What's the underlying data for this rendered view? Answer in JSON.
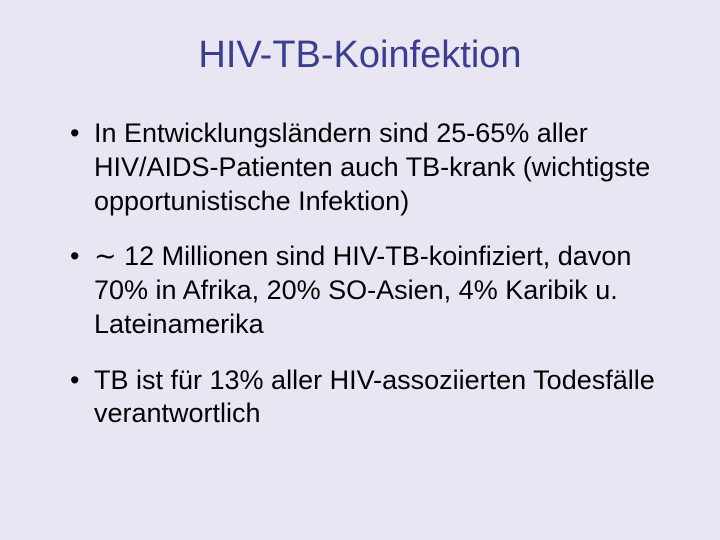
{
  "colors": {
    "background": "#e9e5f3",
    "title": "#3a3e8f",
    "body_text": "#000000"
  },
  "typography": {
    "title_fontsize": 38,
    "body_fontsize": 27,
    "font_family": "Arial"
  },
  "slide": {
    "title": "HIV-TB-Koinfektion",
    "bullets": [
      "In Entwicklungsländern sind 25-65% aller HIV/AIDS-Patienten auch TB-krank (wichtigste opportunistische Infektion)",
      "∼ 12 Millionen sind HIV-TB-koinfiziert, davon 70% in Afrika, 20% SO-Asien, 4% Karibik u. Lateinamerika",
      "TB ist für 13% aller HIV-assoziierten Todesfälle verantwortlich"
    ]
  }
}
